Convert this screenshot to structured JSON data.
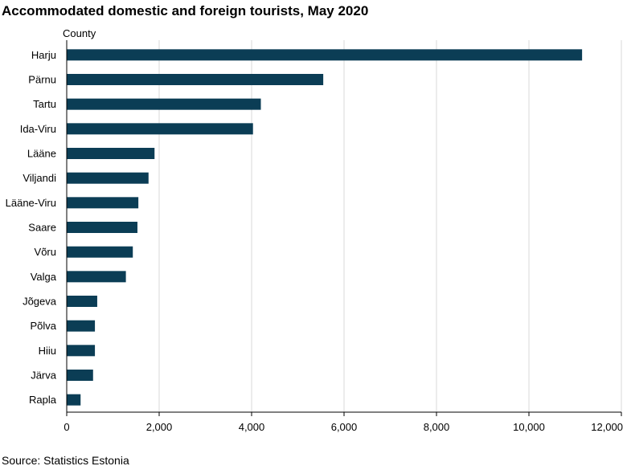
{
  "chart_data": {
    "type": "bar",
    "orientation": "horizontal",
    "title": "Accommodated domestic and foreign tourists, May 2020",
    "ylabel": "County",
    "xlabel": "",
    "categories": [
      "Harju",
      "Pärnu",
      "Tartu",
      "Ida-Viru",
      "Lääne",
      "Viljandi",
      "Lääne-Viru",
      "Saare",
      "Võru",
      "Valga",
      "Jõgeva",
      "Põlva",
      "Hiiu",
      "Järva",
      "Rapla"
    ],
    "values": [
      11150,
      5550,
      4200,
      4030,
      1900,
      1770,
      1550,
      1530,
      1430,
      1280,
      660,
      610,
      610,
      570,
      300
    ],
    "xlim": [
      0,
      12000
    ],
    "x_ticks": [
      0,
      2000,
      4000,
      6000,
      8000,
      10000,
      12000
    ],
    "x_tick_labels": [
      "0",
      "2,000",
      "4,000",
      "6,000",
      "8,000",
      "10,000",
      "12,000"
    ],
    "grid": "vertical",
    "legend": "none",
    "bar_color": "#0b3d55",
    "gridline_color": "#d9d9d9",
    "axis_color": "#000000"
  },
  "footer": {
    "source": "Source: Statistics Estonia"
  }
}
